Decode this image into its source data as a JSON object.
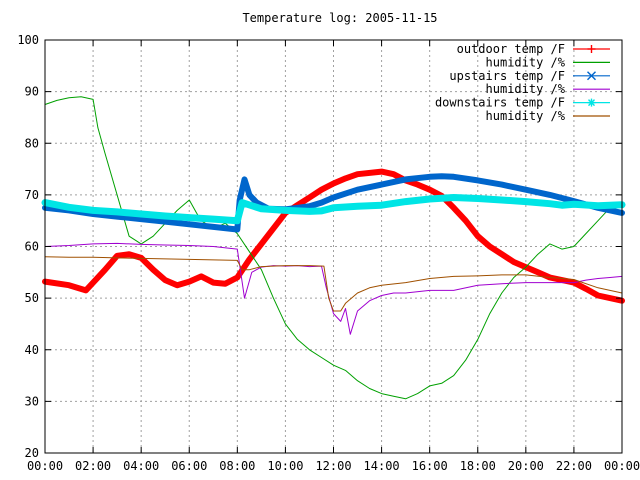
{
  "chart_data": {
    "type": "line",
    "title": "Temperature log: 2005-11-15",
    "xlabel": "",
    "ylabel": "",
    "xlim": [
      0,
      24
    ],
    "ylim": [
      20,
      100
    ],
    "grid": true,
    "legend_position": "top-right",
    "x_ticks": [
      "00:00",
      "02:00",
      "04:00",
      "06:00",
      "08:00",
      "10:00",
      "12:00",
      "14:00",
      "16:00",
      "18:00",
      "20:00",
      "22:00",
      "00:00"
    ],
    "y_ticks": [
      "20",
      "30",
      "40",
      "50",
      "60",
      "70",
      "80",
      "90",
      "100"
    ],
    "series": [
      {
        "name": "outdoor temp /F",
        "color": "#ff0000",
        "marker": "plus",
        "width": 6,
        "points": [
          [
            0,
            53.2
          ],
          [
            1,
            52.5
          ],
          [
            1.7,
            51.5
          ],
          [
            2,
            53
          ],
          [
            2.5,
            55.5
          ],
          [
            3,
            58.2
          ],
          [
            3.5,
            58.5
          ],
          [
            4,
            57.8
          ],
          [
            4.5,
            55.5
          ],
          [
            5,
            53.5
          ],
          [
            5.5,
            52.5
          ],
          [
            6,
            53.2
          ],
          [
            6.5,
            54.2
          ],
          [
            7,
            53
          ],
          [
            7.5,
            52.8
          ],
          [
            8,
            54
          ],
          [
            8.5,
            57.5
          ],
          [
            9,
            60.5
          ],
          [
            9.5,
            63.5
          ],
          [
            10,
            66.5
          ],
          [
            10.5,
            68
          ],
          [
            11,
            69.5
          ],
          [
            11.5,
            71
          ],
          [
            12,
            72.2
          ],
          [
            12.5,
            73.2
          ],
          [
            13,
            74
          ],
          [
            14,
            74.5
          ],
          [
            14.5,
            74
          ],
          [
            15,
            72.8
          ],
          [
            15.5,
            72
          ],
          [
            16,
            71
          ],
          [
            16.5,
            69.8
          ],
          [
            17,
            67.5
          ],
          [
            17.5,
            65
          ],
          [
            18,
            62
          ],
          [
            18.5,
            60
          ],
          [
            19,
            58.5
          ],
          [
            19.5,
            57
          ],
          [
            20,
            56
          ],
          [
            20.5,
            55
          ],
          [
            21,
            54
          ],
          [
            22,
            53
          ],
          [
            22.5,
            51.8
          ],
          [
            23,
            50.5
          ],
          [
            24,
            49.5
          ]
        ]
      },
      {
        "name": "humidity /%",
        "color": "#00a000",
        "marker": "none",
        "width": 1,
        "points": [
          [
            0,
            87.5
          ],
          [
            0.5,
            88.3
          ],
          [
            1,
            88.8
          ],
          [
            1.5,
            89
          ],
          [
            2,
            88.5
          ],
          [
            2.2,
            83
          ],
          [
            2.5,
            78
          ],
          [
            3,
            70
          ],
          [
            3.5,
            62
          ],
          [
            4,
            60.5
          ],
          [
            4.5,
            62
          ],
          [
            5,
            64.5
          ],
          [
            5.5,
            67
          ],
          [
            6,
            69
          ],
          [
            6.3,
            66.5
          ],
          [
            6.5,
            65
          ],
          [
            7,
            63.5
          ],
          [
            7.5,
            64.5
          ],
          [
            8,
            62.5
          ],
          [
            8.5,
            59
          ],
          [
            9,
            55.5
          ],
          [
            9.5,
            50
          ],
          [
            10,
            45
          ],
          [
            10.5,
            42
          ],
          [
            11,
            40
          ],
          [
            11.5,
            38.5
          ],
          [
            12,
            37
          ],
          [
            12.5,
            36
          ],
          [
            13,
            34
          ],
          [
            13.5,
            32.5
          ],
          [
            14,
            31.5
          ],
          [
            14.5,
            31
          ],
          [
            15,
            30.5
          ],
          [
            15.5,
            31.5
          ],
          [
            16,
            33
          ],
          [
            16.5,
            33.5
          ],
          [
            17,
            35
          ],
          [
            17.5,
            38
          ],
          [
            18,
            42
          ],
          [
            18.5,
            47
          ],
          [
            19,
            51
          ],
          [
            19.5,
            54
          ],
          [
            20,
            56
          ],
          [
            20.5,
            58.5
          ],
          [
            21,
            60.5
          ],
          [
            21.5,
            59.5
          ],
          [
            22,
            60
          ],
          [
            22.5,
            62.5
          ],
          [
            23,
            65
          ],
          [
            23.5,
            67.5
          ],
          [
            24,
            68.5
          ]
        ]
      },
      {
        "name": "upstairs temp /F",
        "color": "#0066cc",
        "marker": "cross",
        "width": 6,
        "points": [
          [
            0,
            67.5
          ],
          [
            1,
            67
          ],
          [
            2,
            66.3
          ],
          [
            3,
            65.8
          ],
          [
            4,
            65.3
          ],
          [
            5,
            64.8
          ],
          [
            6,
            64.3
          ],
          [
            7,
            63.8
          ],
          [
            8,
            63.3
          ],
          [
            8.1,
            69
          ],
          [
            8.3,
            73
          ],
          [
            8.5,
            70
          ],
          [
            8.8,
            68.5
          ],
          [
            9.3,
            67.3
          ],
          [
            10,
            67.2
          ],
          [
            10.5,
            67.5
          ],
          [
            11,
            67.8
          ],
          [
            11.5,
            68.5
          ],
          [
            12,
            69.5
          ],
          [
            13,
            71
          ],
          [
            14,
            72
          ],
          [
            15,
            73
          ],
          [
            16,
            73.5
          ],
          [
            16.5,
            73.6
          ],
          [
            17,
            73.5
          ],
          [
            18,
            72.8
          ],
          [
            19,
            72
          ],
          [
            20,
            71
          ],
          [
            21,
            70
          ],
          [
            22,
            68.8
          ],
          [
            23,
            67.5
          ],
          [
            24,
            66.5
          ]
        ]
      },
      {
        "name": "humidity /%",
        "color": "#a000d0",
        "marker": "none",
        "width": 1,
        "points": [
          [
            0,
            60
          ],
          [
            1,
            60.2
          ],
          [
            2,
            60.5
          ],
          [
            3,
            60.6
          ],
          [
            4,
            60.4
          ],
          [
            5,
            60.3
          ],
          [
            6,
            60.2
          ],
          [
            7,
            60
          ],
          [
            8,
            59.5
          ],
          [
            8.3,
            50
          ],
          [
            8.6,
            55
          ],
          [
            9,
            56
          ],
          [
            9.5,
            56.3
          ],
          [
            10,
            56.2
          ],
          [
            10.5,
            56.3
          ],
          [
            11,
            56.1
          ],
          [
            11.5,
            56.2
          ],
          [
            11.7,
            52
          ],
          [
            12,
            47
          ],
          [
            12.3,
            45.5
          ],
          [
            12.5,
            48
          ],
          [
            12.7,
            43
          ],
          [
            13,
            47.5
          ],
          [
            13.5,
            49.5
          ],
          [
            14,
            50.5
          ],
          [
            14.5,
            51
          ],
          [
            15,
            51
          ],
          [
            16,
            51.5
          ],
          [
            17,
            51.5
          ],
          [
            18,
            52.5
          ],
          [
            19,
            52.8
          ],
          [
            20,
            53
          ],
          [
            21,
            53
          ],
          [
            22,
            53
          ],
          [
            22.5,
            53.5
          ],
          [
            23,
            53.8
          ],
          [
            23.5,
            54
          ],
          [
            24,
            54.2
          ]
        ]
      },
      {
        "name": "downstairs temp /F",
        "color": "#00e5e5",
        "marker": "star",
        "width": 7,
        "points": [
          [
            0,
            68.5
          ],
          [
            1,
            67.6
          ],
          [
            2,
            67
          ],
          [
            3,
            66.7
          ],
          [
            4,
            66.3
          ],
          [
            5,
            65.9
          ],
          [
            6,
            65.6
          ],
          [
            7,
            65.3
          ],
          [
            8,
            65
          ],
          [
            8.2,
            68.5
          ],
          [
            9,
            67.3
          ],
          [
            10,
            67
          ],
          [
            11,
            66.8
          ],
          [
            11.5,
            66.9
          ],
          [
            12,
            67.5
          ],
          [
            13,
            67.8
          ],
          [
            14,
            68
          ],
          [
            15,
            68.7
          ],
          [
            16,
            69.2
          ],
          [
            17,
            69.5
          ],
          [
            18,
            69.3
          ],
          [
            19,
            69
          ],
          [
            20,
            68.7
          ],
          [
            21,
            68.3
          ],
          [
            21.5,
            68
          ],
          [
            22,
            68.2
          ],
          [
            23,
            67.9
          ],
          [
            24,
            68.1
          ]
        ]
      },
      {
        "name": "humidity /%",
        "color": "#a05000",
        "marker": "none",
        "width": 1,
        "points": [
          [
            0,
            58
          ],
          [
            1,
            57.9
          ],
          [
            2,
            57.9
          ],
          [
            3,
            57.8
          ],
          [
            4,
            57.7
          ],
          [
            5,
            57.6
          ],
          [
            6,
            57.5
          ],
          [
            7,
            57.4
          ],
          [
            8,
            57.3
          ],
          [
            8.2,
            55.5
          ],
          [
            8.5,
            55.5
          ],
          [
            9,
            56.1
          ],
          [
            10,
            56.3
          ],
          [
            11,
            56.3
          ],
          [
            11.6,
            56.2
          ],
          [
            11.8,
            50
          ],
          [
            12,
            47.5
          ],
          [
            12.3,
            47.5
          ],
          [
            12.5,
            49
          ],
          [
            13,
            51
          ],
          [
            13.5,
            52
          ],
          [
            14,
            52.5
          ],
          [
            15,
            53
          ],
          [
            16,
            53.8
          ],
          [
            17,
            54.2
          ],
          [
            18,
            54.3
          ],
          [
            19,
            54.5
          ],
          [
            20,
            54.5
          ],
          [
            21,
            54
          ],
          [
            22,
            53.6
          ],
          [
            23,
            52
          ],
          [
            24,
            51
          ]
        ]
      }
    ]
  }
}
